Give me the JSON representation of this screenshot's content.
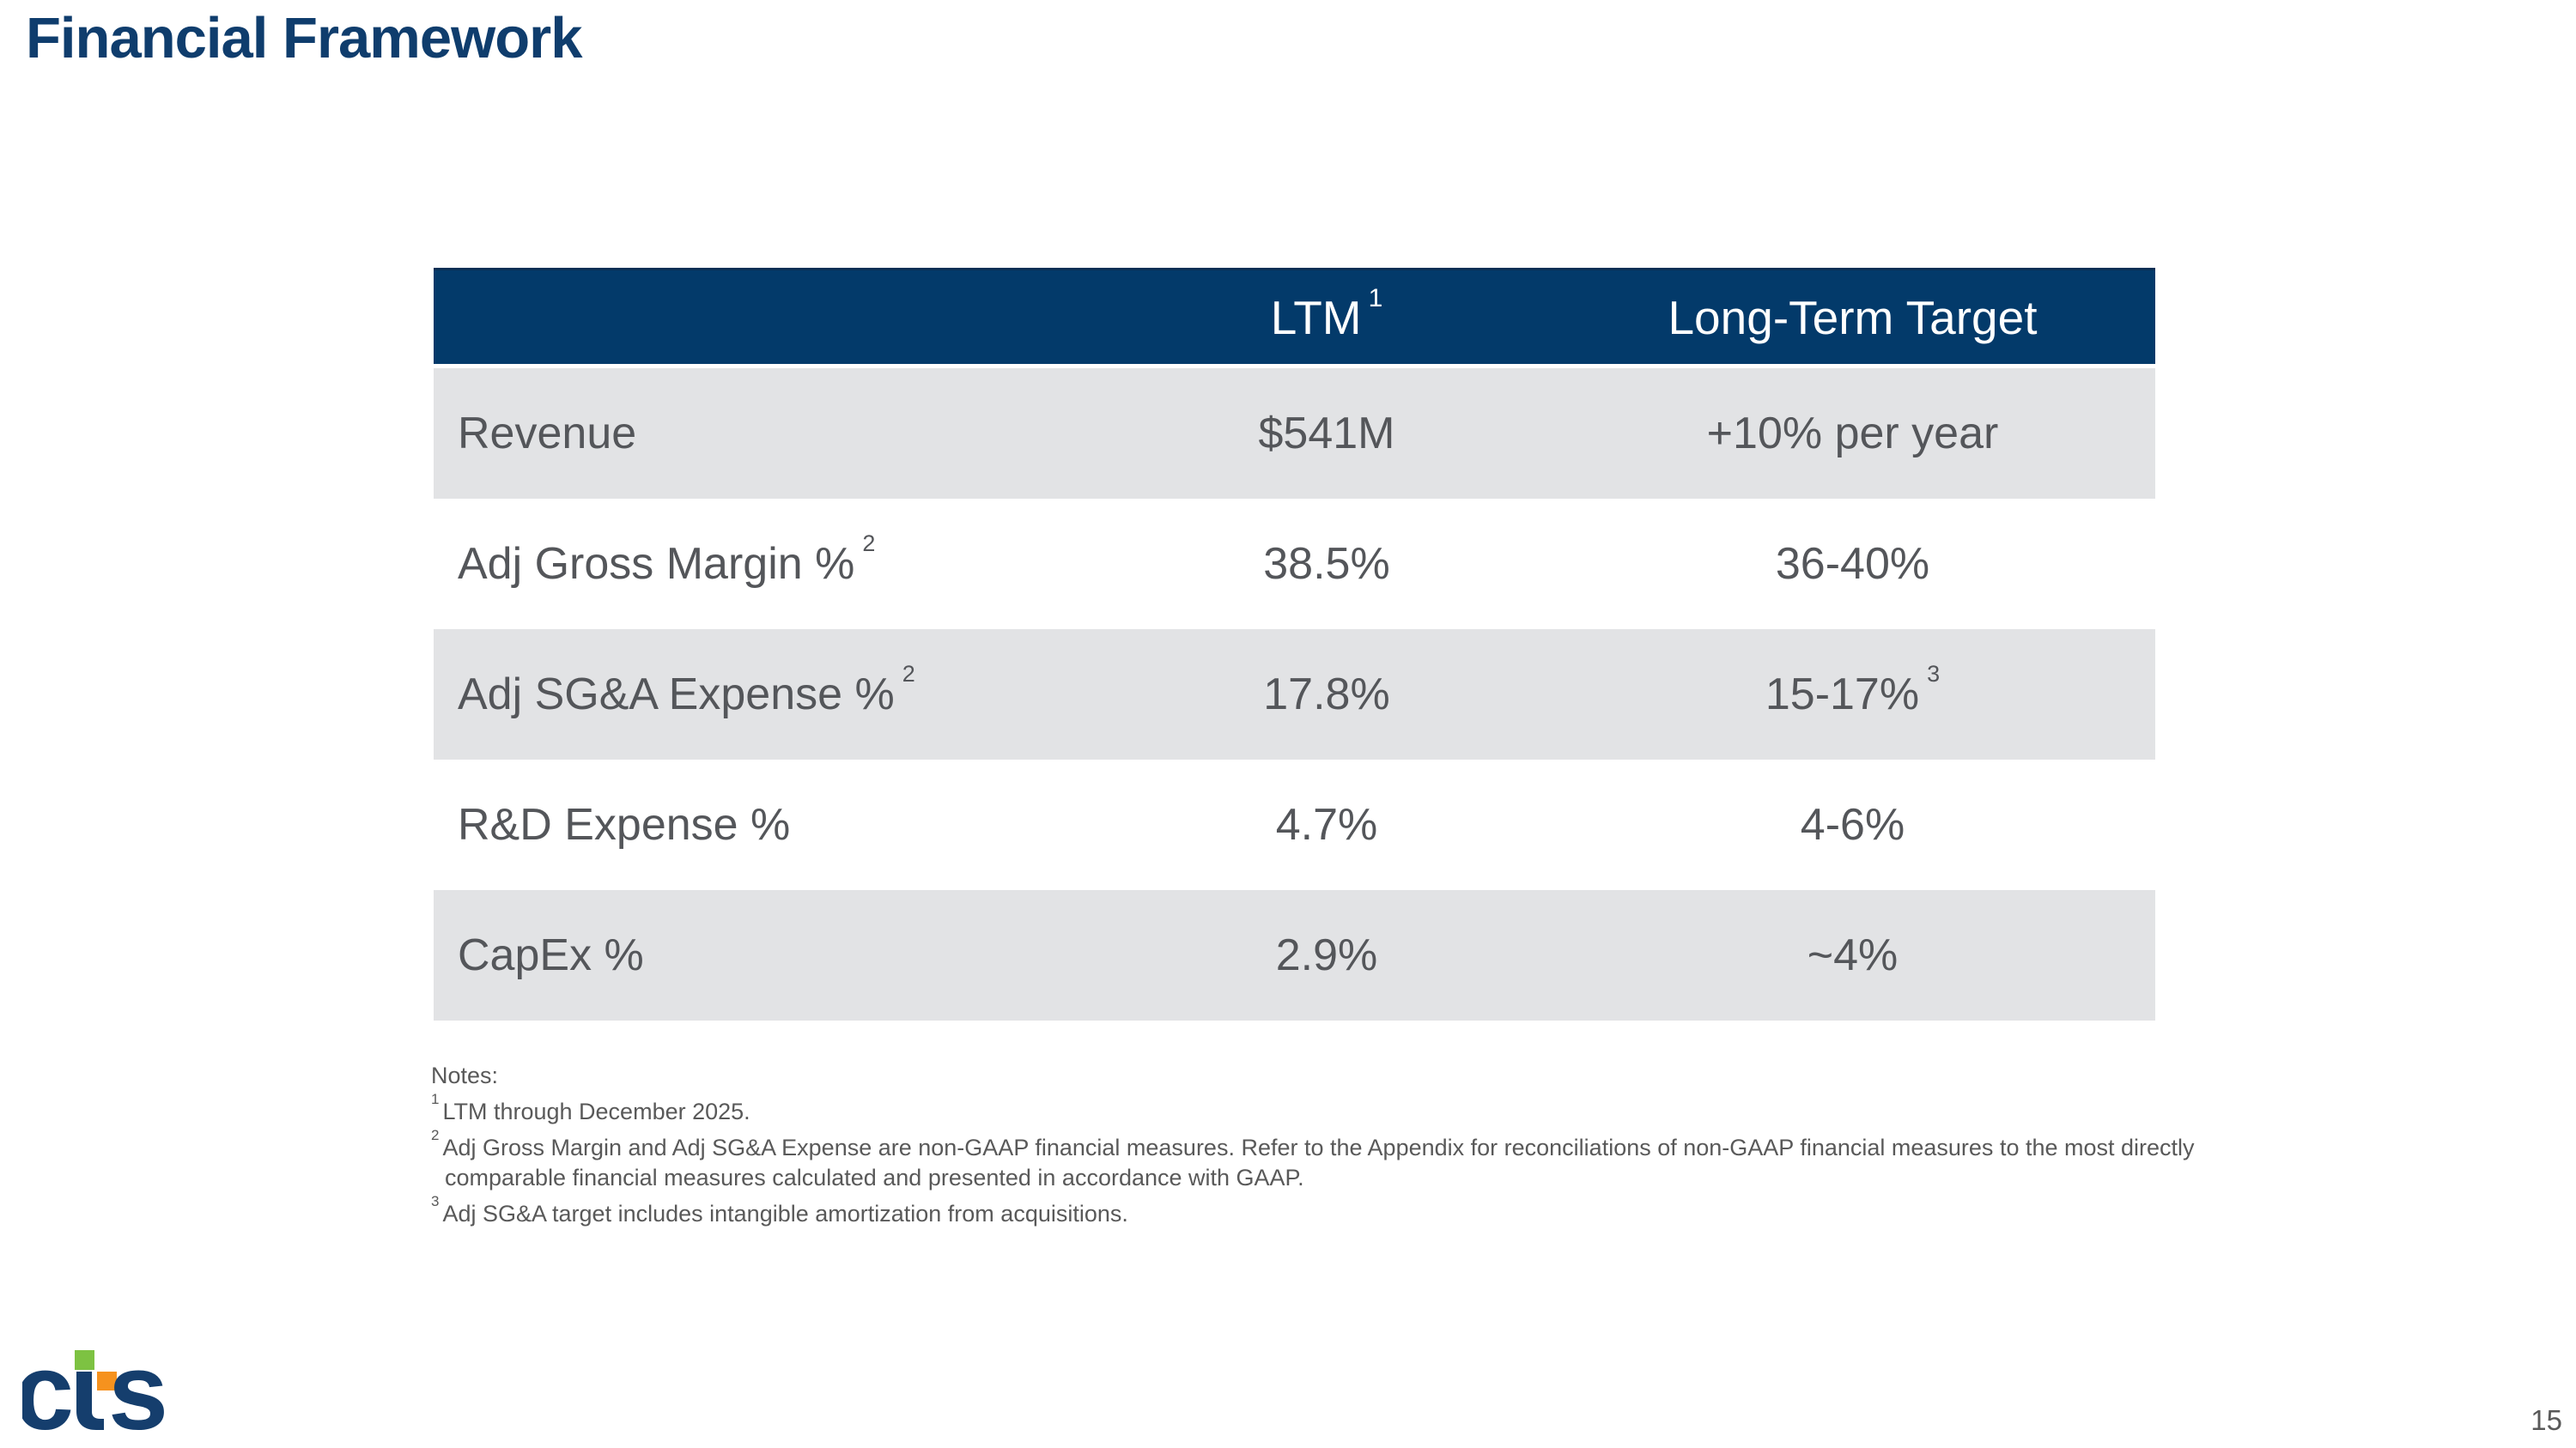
{
  "slide": {
    "title": "Financial Framework",
    "page_number": "15"
  },
  "table": {
    "header": {
      "metric_col": "",
      "ltm_label": "LTM",
      "ltm_sup": "1",
      "target_label": "Long-Term Target"
    },
    "rows": [
      {
        "label": "Revenue",
        "label_sup": "",
        "ltm": "$541M",
        "target": "+10% per year",
        "target_sup": "",
        "shaded": true
      },
      {
        "label": "Adj Gross Margin %",
        "label_sup": "2",
        "ltm": "38.5%",
        "target": "36-40%",
        "target_sup": "",
        "shaded": false
      },
      {
        "label": "Adj SG&A Expense %",
        "label_sup": "2",
        "ltm": "17.8%",
        "target": "15-17%",
        "target_sup": "3",
        "shaded": true
      },
      {
        "label": "R&D Expense %",
        "label_sup": "",
        "ltm": "4.7%",
        "target": "4-6%",
        "target_sup": "",
        "shaded": false
      },
      {
        "label": "CapEx %",
        "label_sup": "",
        "ltm": "2.9%",
        "target": "~4%",
        "target_sup": "",
        "shaded": true
      }
    ]
  },
  "notes": {
    "heading": "Notes:",
    "items": [
      {
        "sup": "1",
        "lines": [
          "LTM through December 2025."
        ]
      },
      {
        "sup": "2",
        "lines": [
          "Adj Gross Margin and Adj SG&A Expense are non-GAAP financial measures. Refer to the Appendix for reconciliations of non-GAAP financial measures to the most directly",
          "comparable financial measures calculated and presented in accordance with GAAP."
        ]
      },
      {
        "sup": "3",
        "lines": [
          "Adj SG&A target includes intangible amortization from acquisitions."
        ]
      }
    ]
  },
  "logo": {
    "name": "cts",
    "letter_c": "c",
    "letter_s": "s"
  },
  "colors": {
    "header_navy": "#033a6a",
    "title_navy": "#0f3d6d",
    "row_gray": "#e2e3e5",
    "table_text_gray": "#54565a",
    "notes_gray": "#595959",
    "logo_navy": "#153e6d",
    "logo_green": "#7dc242",
    "logo_orange": "#f6921e"
  }
}
